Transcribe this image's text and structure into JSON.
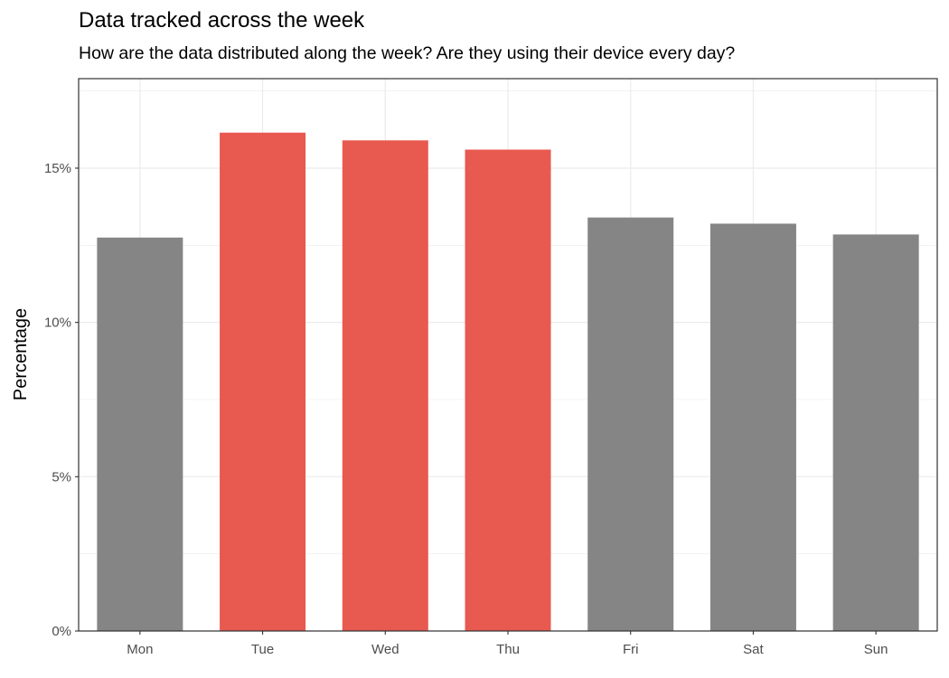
{
  "chart_data": {
    "type": "bar",
    "title": "Data tracked across the week",
    "subtitle": "How are the data distributed along the week? Are they using their device every day?",
    "xlabel": "",
    "ylabel": "Percentage",
    "categories": [
      "Mon",
      "Tue",
      "Wed",
      "Thu",
      "Fri",
      "Sat",
      "Sun"
    ],
    "values": [
      12.75,
      16.15,
      15.9,
      15.6,
      13.4,
      13.2,
      12.85
    ],
    "highlighted": [
      false,
      true,
      true,
      true,
      false,
      false,
      false
    ],
    "colors": {
      "default": "#858585",
      "highlight": "#E8594F",
      "grid": "#ebebeb",
      "axis": "#333333"
    },
    "ylim": [
      0,
      17.9
    ],
    "yticks": [
      0,
      5,
      10,
      15
    ],
    "ytick_labels": [
      "0%",
      "5%",
      "10%",
      "15%"
    ],
    "grid": true,
    "legend": "none"
  }
}
